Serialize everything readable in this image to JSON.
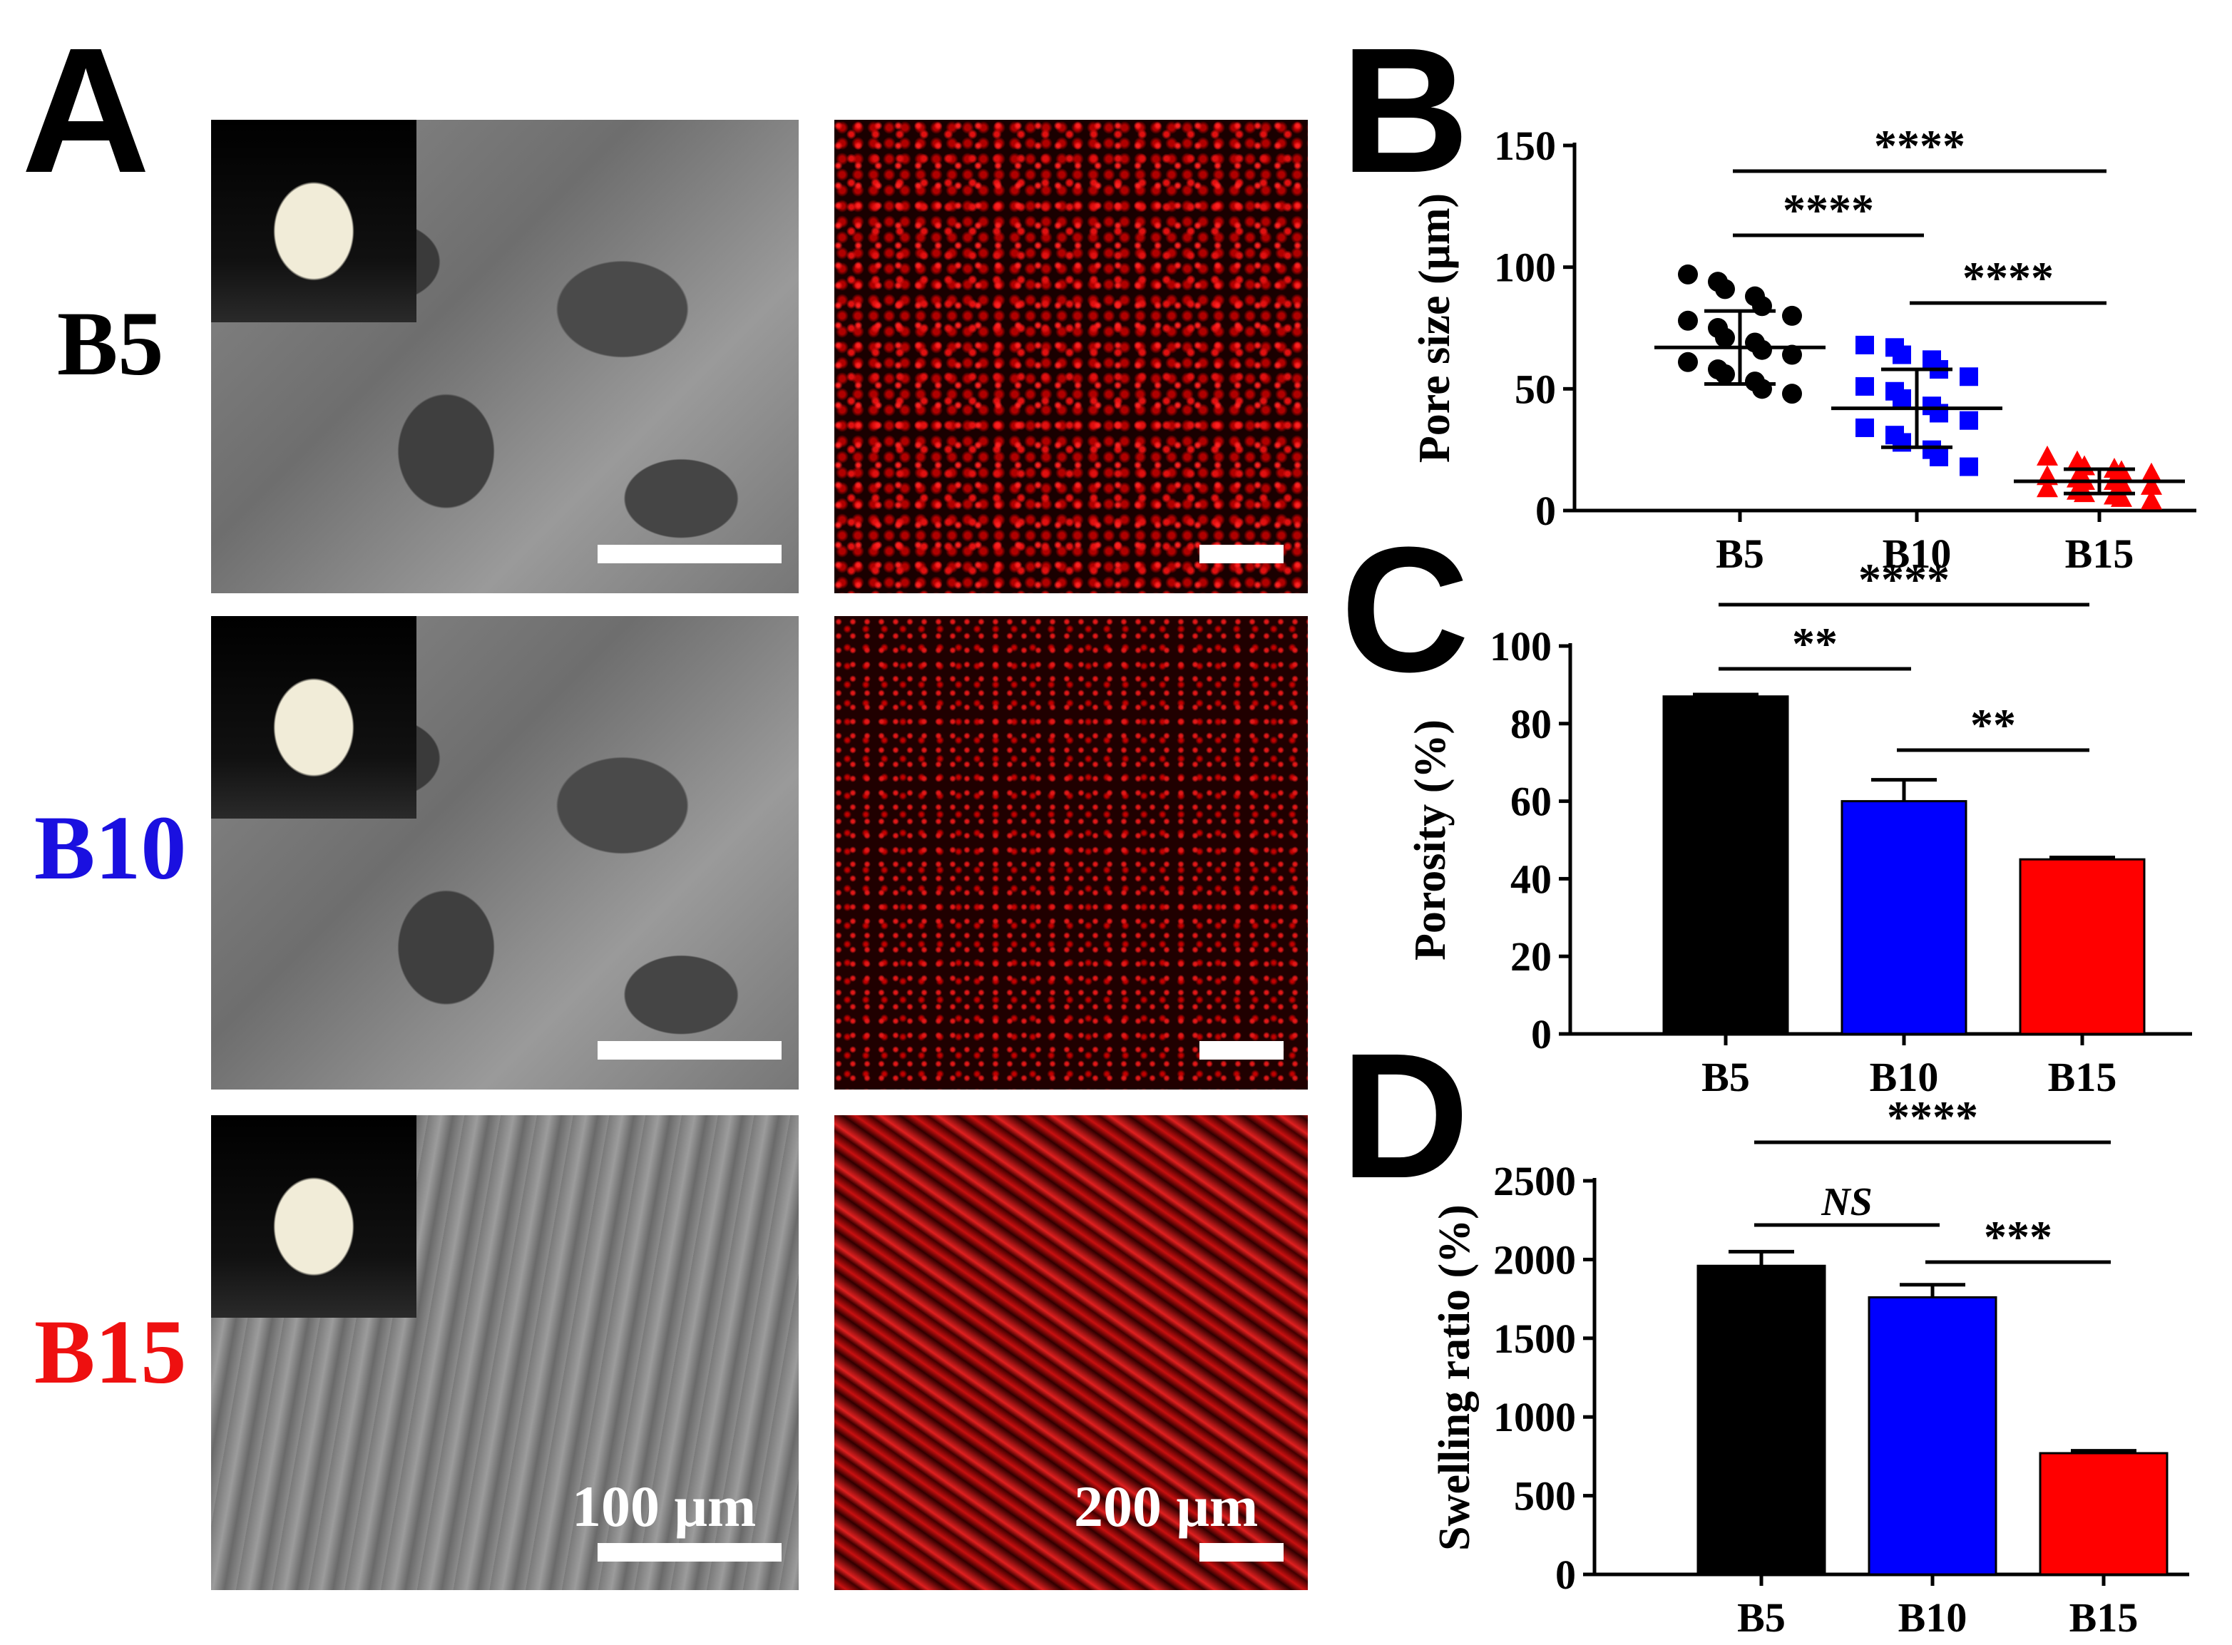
{
  "panel_letters": {
    "A": "A",
    "B": "B",
    "C": "C",
    "D": "D"
  },
  "rows": [
    {
      "label": "B5",
      "color": "#000000"
    },
    {
      "label": "B10",
      "color": "#1a10e0"
    },
    {
      "label": "B15",
      "color": "#ee1010"
    }
  ],
  "scale_bars": {
    "sem": "100 μm",
    "fluorescence": "200 μm"
  },
  "colors": {
    "B5": "#000000",
    "B10": "#0000ff",
    "B15": "#ff0000"
  },
  "chart_data": [
    {
      "panel": "B",
      "type": "scatter",
      "categories": [
        "B5",
        "B10",
        "B15"
      ],
      "ylabel": "Pore size (μm)",
      "ylim": [
        0,
        150
      ],
      "yticks": [
        0,
        50,
        100,
        150
      ],
      "series": [
        {
          "category": "B5",
          "mean": 67,
          "sd": 15,
          "color": "#000000",
          "values": [
            97,
            94,
            91,
            88,
            84,
            80,
            78,
            75,
            71,
            69,
            66,
            64,
            61,
            58,
            56,
            53,
            50,
            48
          ]
        },
        {
          "category": "B10",
          "mean": 42,
          "sd": 16,
          "color": "#0000ff",
          "values": [
            68,
            67,
            64,
            62,
            58,
            55,
            51,
            49,
            46,
            43,
            40,
            37,
            34,
            31,
            28,
            25,
            22,
            18
          ]
        },
        {
          "category": "B15",
          "mean": 12,
          "sd": 5,
          "color": "#ff0000",
          "values": [
            22,
            20,
            18,
            17,
            16,
            15,
            14,
            13,
            12,
            12,
            11,
            10,
            9,
            8,
            7,
            6,
            5,
            4
          ]
        }
      ],
      "significance": [
        {
          "from": "B5",
          "to": "B15",
          "label": "****"
        },
        {
          "from": "B5",
          "to": "B10",
          "label": "****"
        },
        {
          "from": "B10",
          "to": "B15",
          "label": "****"
        }
      ]
    },
    {
      "panel": "C",
      "type": "bar",
      "categories": [
        "B5",
        "B10",
        "B15"
      ],
      "values": [
        87,
        60,
        45
      ],
      "errors": [
        0.5,
        5.5,
        0.5
      ],
      "ylabel": "Porosity (%)",
      "ylim": [
        0,
        100
      ],
      "yticks": [
        0,
        20,
        40,
        60,
        80,
        100
      ],
      "significance": [
        {
          "from": "B5",
          "to": "B15",
          "label": "****"
        },
        {
          "from": "B5",
          "to": "B10",
          "label": "**"
        },
        {
          "from": "B10",
          "to": "B15",
          "label": "**"
        }
      ]
    },
    {
      "panel": "D",
      "type": "bar",
      "categories": [
        "B5",
        "B10",
        "B15"
      ],
      "values": [
        1960,
        1760,
        770
      ],
      "errors": [
        90,
        80,
        15
      ],
      "ylabel": "Swelling ratio (%)",
      "ylim": [
        0,
        2500
      ],
      "yticks": [
        0,
        500,
        1000,
        1500,
        2000,
        2500
      ],
      "significance": [
        {
          "from": "B5",
          "to": "B15",
          "label": "****"
        },
        {
          "from": "B5",
          "to": "B10",
          "label": "NS"
        },
        {
          "from": "B10",
          "to": "B15",
          "label": "***"
        }
      ]
    }
  ]
}
